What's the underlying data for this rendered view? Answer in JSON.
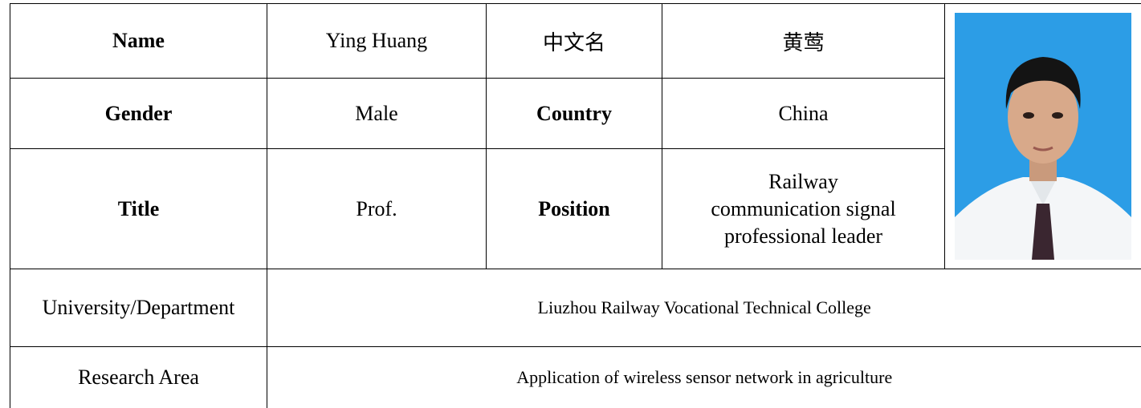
{
  "table": {
    "rows": [
      [
        "Name",
        "Ying Huang",
        "中文名",
        "黄莺"
      ],
      [
        "Gender",
        "Male",
        "Country",
        "China"
      ],
      [
        "Title",
        "Prof.",
        "Position",
        "Railway communication signal professional leader"
      ],
      [
        "University/Department",
        "Liuzhou Railway Vocational Technical College"
      ],
      [
        "Research Area",
        "Application of wireless sensor network in agriculture"
      ]
    ]
  }
}
